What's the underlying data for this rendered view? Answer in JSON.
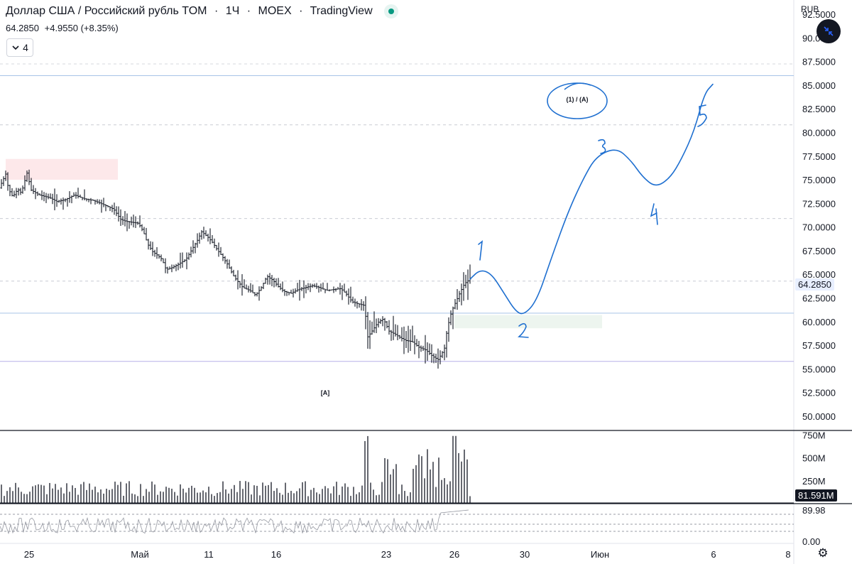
{
  "header": {
    "title": "Доллар США / Российский рубль TOM",
    "interval": "1Ч",
    "exchange": "MOEX",
    "source": "TradingView",
    "dot_sep": "·",
    "quote_price": "64.2850",
    "quote_change": "+4.9550 (+8.35%)",
    "indicators_count": "4"
  },
  "right_axis": {
    "currency": "RUB",
    "last_price_tag": "64.2850",
    "volume_tag": "81.591M",
    "osc_tag": "89.98",
    "osc_zero": "0.00"
  },
  "annotations": {
    "wave_label": "(1) / (A)",
    "bracket_label": "[A]",
    "wave_numbers": [
      "1",
      "2",
      "3",
      "4",
      "5"
    ]
  },
  "icons": {
    "collapse": "chevron-down-icon",
    "fullscreen": "collapse-arrows-icon",
    "settings": "gear-icon"
  },
  "colors": {
    "accent": "#2962ff",
    "drawing": "#1e6fd0",
    "live": "#089981",
    "zone_red": "#fde8ea",
    "zone_green": "#edf5ef",
    "hline": "#a7c4e8"
  },
  "chart_data": {
    "type": "candlestick",
    "interval": "1H",
    "ylim": [
      48.5,
      94.0
    ],
    "y_ticks": [
      "92.5000",
      "90.0000",
      "87.5000",
      "85.0000",
      "82.5000",
      "80.0000",
      "77.5000",
      "75.0000",
      "72.5000",
      "70.0000",
      "67.5000",
      "65.0000",
      "62.5000",
      "60.0000",
      "57.5000",
      "55.0000",
      "52.5000",
      "50.0000"
    ],
    "x_ticks": [
      "25",
      "Май",
      "11",
      "16",
      "23",
      "26",
      "30",
      "Июн",
      "6",
      "8"
    ],
    "price_path": [
      [
        0,
        74.3
      ],
      [
        8,
        75.6
      ],
      [
        12,
        74.0
      ],
      [
        18,
        73.2
      ],
      [
        25,
        74.0
      ],
      [
        30,
        73.6
      ],
      [
        38,
        75.7
      ],
      [
        44,
        73.9
      ],
      [
        55,
        73.4
      ],
      [
        70,
        73.1
      ],
      [
        80,
        72.7
      ],
      [
        92,
        72.9
      ],
      [
        105,
        73.4
      ],
      [
        118,
        73.0
      ],
      [
        132,
        72.8
      ],
      [
        145,
        72.4
      ],
      [
        160,
        71.9
      ],
      [
        170,
        70.8
      ],
      [
        178,
        70.6
      ],
      [
        186,
        70.5
      ],
      [
        195,
        70.4
      ],
      [
        202,
        69.5
      ],
      [
        208,
        68.2
      ],
      [
        215,
        67.4
      ],
      [
        222,
        67.0
      ],
      [
        228,
        66.6
      ],
      [
        234,
        65.5
      ],
      [
        242,
        65.7
      ],
      [
        252,
        66.1
      ],
      [
        262,
        66.6
      ],
      [
        270,
        67.6
      ],
      [
        278,
        68.6
      ],
      [
        284,
        69.5
      ],
      [
        292,
        69.0
      ],
      [
        300,
        68.3
      ],
      [
        306,
        67.6
      ],
      [
        312,
        67.0
      ],
      [
        320,
        66.1
      ],
      [
        330,
        64.7
      ],
      [
        342,
        63.6
      ],
      [
        352,
        63.3
      ],
      [
        360,
        62.8
      ],
      [
        368,
        63.6
      ],
      [
        376,
        64.8
      ],
      [
        384,
        64.4
      ],
      [
        392,
        63.7
      ],
      [
        400,
        63.2
      ],
      [
        410,
        63.0
      ],
      [
        420,
        63.4
      ],
      [
        430,
        63.6
      ],
      [
        440,
        63.8
      ],
      [
        450,
        63.6
      ],
      [
        460,
        63.3
      ],
      [
        470,
        63.4
      ],
      [
        480,
        63.5
      ],
      [
        488,
        62.9
      ],
      [
        496,
        62.1
      ],
      [
        504,
        61.9
      ],
      [
        514,
        61.7
      ],
      [
        517,
        58.3
      ],
      [
        523,
        58.9
      ],
      [
        532,
        59.9
      ],
      [
        540,
        60.3
      ],
      [
        548,
        59.0
      ],
      [
        556,
        58.7
      ],
      [
        564,
        58.3
      ],
      [
        572,
        58.0
      ],
      [
        580,
        57.9
      ],
      [
        590,
        57.3
      ],
      [
        600,
        57.0
      ],
      [
        610,
        56.3
      ],
      [
        617,
        56.0
      ],
      [
        622,
        56.6
      ],
      [
        626,
        57.2
      ],
      [
        630,
        59.3
      ],
      [
        636,
        61.1
      ],
      [
        642,
        62.1
      ],
      [
        648,
        63.1
      ],
      [
        654,
        64.0
      ],
      [
        662,
        64.5
      ]
    ],
    "forecast_path": {
      "label": "(1) / (A)",
      "waves": [
        "1",
        "2",
        "3",
        "4",
        "5"
      ],
      "points_price": [
        [
          662,
          64.5
        ],
        [
          676,
          65.5
        ],
        [
          692,
          65.1
        ],
        [
          710,
          63.0
        ],
        [
          726,
          61.1
        ],
        [
          738,
          60.7
        ],
        [
          756,
          62.2
        ],
        [
          776,
          66.6
        ],
        [
          800,
          71.6
        ],
        [
          822,
          75.2
        ],
        [
          840,
          77.5
        ],
        [
          868,
          78.4
        ],
        [
          888,
          77.1
        ],
        [
          906,
          75.2
        ],
        [
          924,
          74.2
        ],
        [
          944,
          75.2
        ],
        [
          960,
          77.2
        ],
        [
          978,
          80.2
        ],
        [
          992,
          84.1
        ],
        [
          1004,
          85.1
        ]
      ]
    },
    "horizontal_levels": [
      55.8,
      60.9,
      64.285,
      70.9,
      80.8,
      86.0
    ],
    "zones": [
      {
        "name": "resistance",
        "x0": 8,
        "x1": 166,
        "y_top": 77.2,
        "y_bottom": 75.0
      },
      {
        "name": "support",
        "x0": 640,
        "x1": 848,
        "y_top": 60.7,
        "y_bottom": 59.3
      }
    ],
    "volume": {
      "ylim": [
        0,
        800
      ],
      "y_ticks": [
        "750M",
        "500M",
        "250M"
      ],
      "last_value_M": 81.591
    },
    "oscillator": {
      "last_value": 89.98,
      "zero_label": "0.00"
    }
  }
}
